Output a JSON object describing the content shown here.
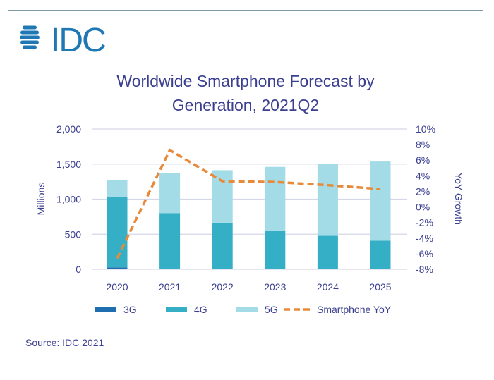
{
  "logo_text": "IDC",
  "source": "Source: IDC 2021",
  "colors": {
    "3G": "#1f6fb0",
    "4G": "#35afc6",
    "5G": "#a3dbe6",
    "yoy": "#e88a3a",
    "text": "#3b3f8f",
    "grid": "#d5d8e6"
  },
  "chart_data": {
    "type": "bar",
    "stacked": true,
    "title_lines": [
      "Worldwide Smartphone Forecast by",
      "Generation, 2021Q2"
    ],
    "ylabel": "Millions",
    "y2label": "YoY Growth",
    "categories": [
      "2020",
      "2021",
      "2022",
      "2023",
      "2024",
      "2025"
    ],
    "ylim": [
      0,
      2000
    ],
    "yticks": [
      "0",
      "500",
      "1,000",
      "1,500",
      "2,000"
    ],
    "y2lim": [
      -8,
      10
    ],
    "y2ticks": [
      "-8%",
      "-6%",
      "-4%",
      "-2%",
      "0%",
      "2%",
      "4%",
      "6%",
      "8%",
      "10%"
    ],
    "grid": true,
    "legend_placement": "bottom",
    "series": [
      {
        "name": "3G",
        "values": [
          27,
          5,
          8,
          0,
          0,
          0
        ]
      },
      {
        "name": "4G",
        "values": [
          1000,
          794,
          646,
          554,
          477,
          409
        ]
      },
      {
        "name": "5G",
        "values": [
          241,
          570,
          759,
          906,
          1020,
          1128
        ]
      }
    ],
    "line_series": {
      "name": "Smartphone YoY",
      "axis": "right",
      "values": [
        -6.6,
        7.3,
        3.3,
        3.2,
        2.8,
        2.3
      ]
    }
  }
}
